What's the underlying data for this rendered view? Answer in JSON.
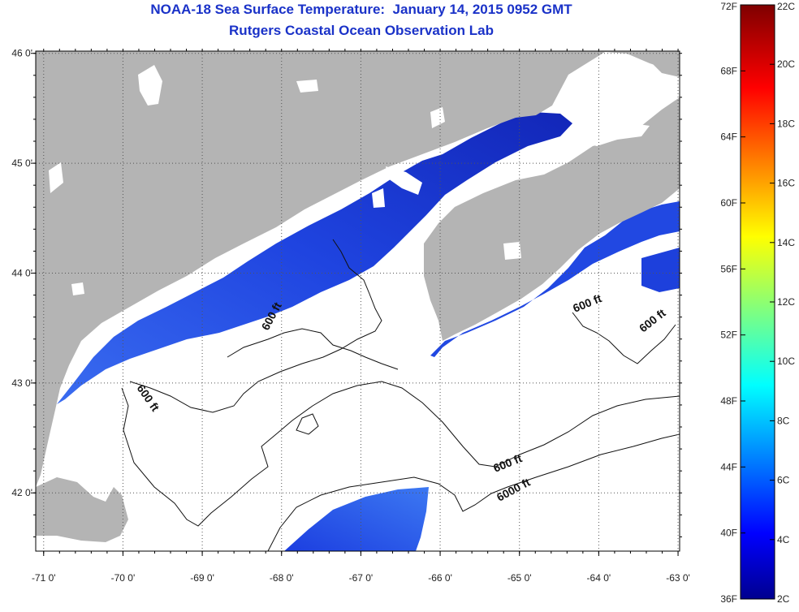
{
  "title": {
    "line1": "NOAA-18 Sea Surface Temperature:  January 14, 2015 0952 GMT",
    "line2": "Rutgers Coastal Ocean Observation Lab"
  },
  "map": {
    "lon_range": [
      -71.1,
      -62.98
    ],
    "lat_range": [
      41.47,
      46.02
    ],
    "lon_ticks": [
      "-71 0'",
      "-70 0'",
      "-69 0'",
      "-68 0'",
      "-67 0'",
      "-66 0'",
      "-65 0'",
      "-64 0'",
      "-63 0'"
    ],
    "lat_ticks": [
      "46 0'",
      "45 0'",
      "44 0'",
      "43 0'",
      "42 0'"
    ],
    "grid": "dotted",
    "contour_labels": [
      "600 ft",
      "600 ft",
      "600 ft",
      "600 ft",
      "600 ft",
      "6000 ft"
    ]
  },
  "colorbar": {
    "fahrenheit_labels": [
      "72F",
      "68F",
      "64F",
      "60F",
      "56F",
      "52F",
      "48F",
      "44F",
      "40F",
      "36F"
    ],
    "celsius_labels": [
      "22C",
      "20C",
      "18C",
      "16C",
      "14C",
      "12C",
      "10C",
      "8C",
      "6C",
      "4C",
      "2C"
    ],
    "range_f": [
      36,
      72
    ],
    "range_c": [
      2,
      22
    ]
  },
  "colors": {
    "title": "#1a32c8",
    "land": "#b4b4b4",
    "ocean_cloud": "#ffffff",
    "sst_cold": "#1a3ee6"
  }
}
